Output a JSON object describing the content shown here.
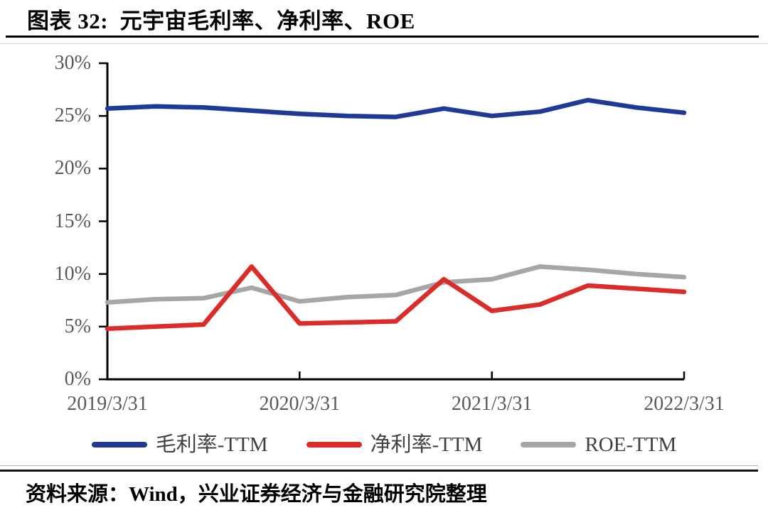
{
  "header": {
    "title": "图表 32:  元宇宙毛利率、净利率、ROE"
  },
  "footer": {
    "source": "资料来源：Wind，兴业证券经济与金融研究院整理"
  },
  "chart_data": {
    "type": "line",
    "title": "图表 32: 元宇宙毛利率、净利率、ROE",
    "x_tick_labels": [
      "2019/3/31",
      "2020/3/31",
      "2021/3/31",
      "2022/3/31"
    ],
    "y_tick_labels": [
      "0%",
      "5%",
      "10%",
      "15%",
      "20%",
      "25%",
      "30%"
    ],
    "ylim": [
      0,
      30
    ],
    "x_points_note": "13 quarterly points from 2019/3/31 to 2022/3/31",
    "grid": "off",
    "legend_position": "bottom",
    "axis_color": "#000000",
    "tick_label_color": "#595959",
    "draw_order": [
      2,
      0,
      1
    ],
    "series": [
      {
        "name": "毛利率-TTM",
        "color": "#1e3a96",
        "values": [
          25.7,
          25.9,
          25.8,
          25.5,
          25.2,
          25.0,
          24.9,
          25.7,
          25.0,
          25.4,
          26.5,
          25.8,
          25.3
        ]
      },
      {
        "name": "净利率-TTM",
        "color": "#da2c28",
        "values": [
          4.8,
          5.0,
          5.2,
          10.7,
          5.3,
          5.4,
          5.5,
          9.5,
          6.5,
          7.1,
          8.9,
          8.6,
          8.3
        ]
      },
      {
        "name": "ROE-TTM",
        "color": "#a6a6a6",
        "values": [
          7.3,
          7.6,
          7.7,
          8.7,
          7.4,
          7.8,
          8.0,
          9.2,
          9.5,
          10.7,
          10.4,
          10.0,
          9.7
        ]
      }
    ]
  }
}
